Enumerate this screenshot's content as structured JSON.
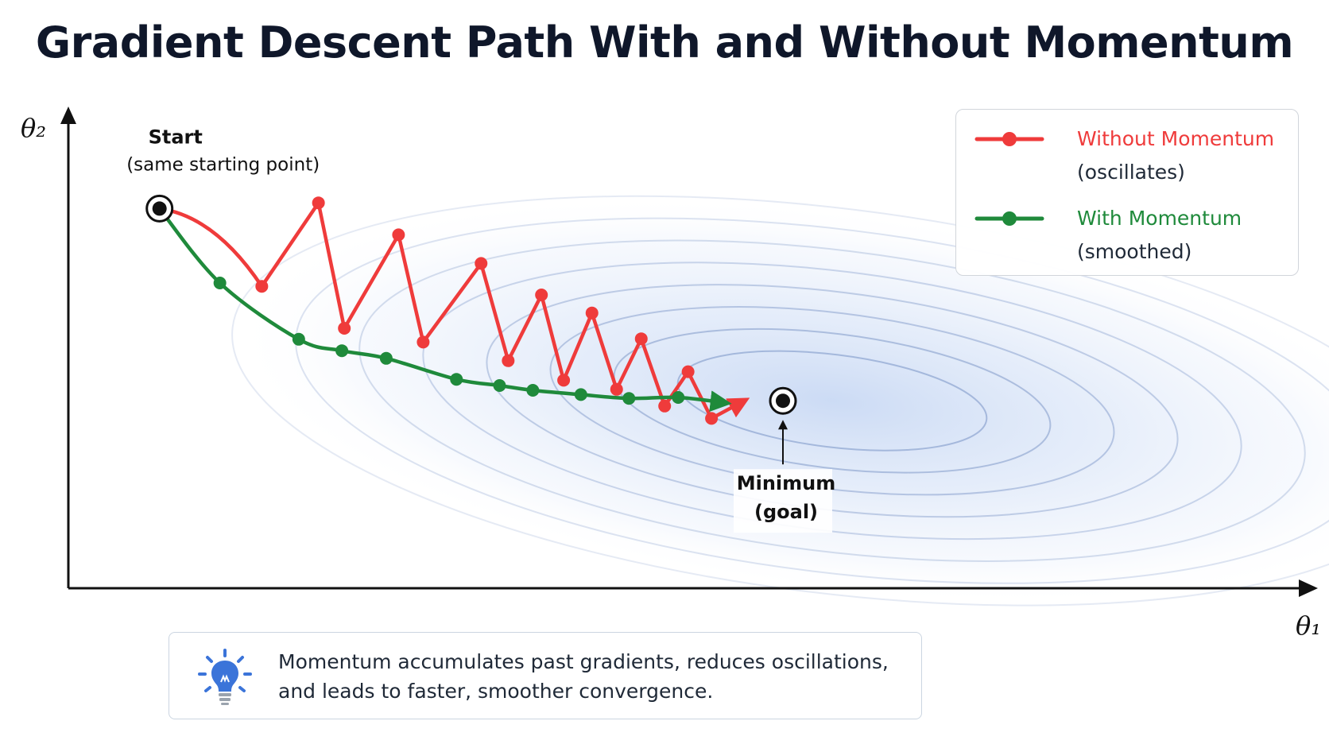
{
  "title": "Gradient Descent Path With and Without Momentum",
  "chart_data": {
    "type": "line",
    "title": "Gradient Descent Path With and Without Momentum",
    "xlabel": "θ₁",
    "ylabel": "θ₂",
    "xlim": [
      0,
      1
    ],
    "ylim": [
      0,
      1
    ],
    "grid": false,
    "legend_position": "top-right",
    "series": [
      {
        "name": "Without Momentum",
        "description": "(oscillates)",
        "color": "#ef3b3b",
        "x": [
          0.074,
          0.157,
          0.203,
          0.224,
          0.268,
          0.288,
          0.335,
          0.357,
          0.384,
          0.402,
          0.425,
          0.445,
          0.465,
          0.484,
          0.503,
          0.522,
          0.55
        ],
        "y": [
          0.796,
          0.633,
          0.808,
          0.545,
          0.741,
          0.516,
          0.681,
          0.477,
          0.615,
          0.436,
          0.577,
          0.417,
          0.523,
          0.382,
          0.454,
          0.356,
          0.395
        ]
      },
      {
        "name": "With Momentum",
        "description": "(smoothed)",
        "color": "#1f8a3b",
        "x": [
          0.074,
          0.123,
          0.187,
          0.222,
          0.258,
          0.315,
          0.35,
          0.377,
          0.416,
          0.455,
          0.495,
          0.535
        ],
        "y": [
          0.796,
          0.64,
          0.522,
          0.498,
          0.482,
          0.438,
          0.425,
          0.415,
          0.406,
          0.398,
          0.4,
          0.388
        ]
      }
    ],
    "points": {
      "start": {
        "x": 0.074,
        "y": 0.796,
        "label": "Start",
        "sublabel": "(same starting point)"
      },
      "minimum": {
        "x": 0.58,
        "y": 0.393,
        "label": "Minimum",
        "sublabel": "(goal)"
      }
    },
    "contours": {
      "center": [
        0.62,
        0.393
      ],
      "levels": 8
    }
  },
  "note": {
    "icon": "lightbulb-icon",
    "line1": "Momentum accumulates past gradients, reduces oscillations,",
    "line2": "and leads to faster, smoother convergence."
  }
}
